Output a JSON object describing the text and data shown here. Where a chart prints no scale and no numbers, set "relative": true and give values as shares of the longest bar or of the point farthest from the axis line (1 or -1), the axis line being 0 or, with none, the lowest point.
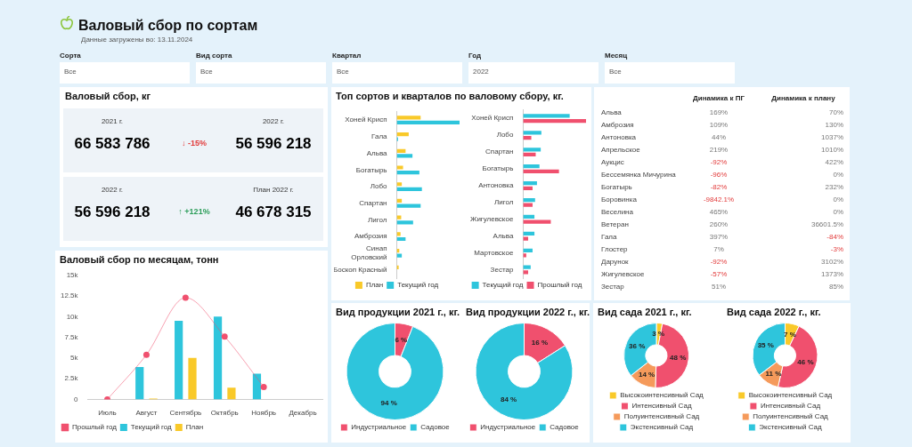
{
  "chart_data": [
    {
      "type": "other",
      "title": "Валовый сбор по сортам",
      "subtitle": "Данные загружены во: 13.11.2024",
      "annotations": [
        "Сорта",
        "Все",
        "Вид сорта",
        "Все",
        "Квартал",
        "Все",
        "Год",
        "2022",
        "Месяц",
        "Все"
      ]
    },
    {
      "type": "other",
      "title": "Валовый сбор, кг",
      "annotations": [
        "2021 г.",
        "66 583 786",
        "↓ -15%",
        "2022 г.",
        "56 596 218",
        "2022 г.",
        "56 596 218",
        "↑ +121%",
        "План 2022 г.",
        "46 678 315"
      ]
    },
    {
      "type": "bar",
      "title": "Топ сортов и кварталов по валовому сбору, кг.",
      "orientation": "horizontal",
      "relative": true,
      "legend": "bottom",
      "categories": [
        "Хоней Крисп",
        "Гала",
        "Альва",
        "Богатырь",
        "Лобо",
        "Спартан",
        "Лигол",
        "Амброзия",
        "Синап Орловский",
        "Боскоп Красный"
      ],
      "series": [
        {
          "name": "План",
          "color": "#f9c929",
          "values": [
            0.38,
            0.19,
            0.14,
            0.1,
            0.08,
            0.08,
            0.07,
            0.06,
            0.04,
            0.03
          ]
        },
        {
          "name": "Текущий год",
          "color": "#2ec5dc",
          "values": [
            1,
            0.02,
            0.25,
            0.36,
            0.4,
            0.38,
            0.26,
            0.14,
            0.08,
            null
          ]
        }
      ]
    },
    {
      "type": "bar",
      "orientation": "horizontal",
      "relative": true,
      "legend": "bottom",
      "categories": [
        "Хоней Крисп",
        "Лобо",
        "Спартан",
        "Богатырь",
        "Антоновка",
        "Лигол",
        "Жигулевское",
        "Альва",
        "Мартовское",
        "Зестар"
      ],
      "series": [
        {
          "name": "Текущий год",
          "color": "#2ec5dc",
          "values": [
            0.74,
            0.29,
            0.28,
            0.26,
            0.22,
            0.19,
            0.18,
            0.18,
            0.15,
            0.12
          ]
        },
        {
          "name": "Прошлый год",
          "color": "#f0506e",
          "values": [
            1,
            0.13,
            0.2,
            0.57,
            0.15,
            0.15,
            0.44,
            0.08,
            0.05,
            0.08
          ]
        }
      ]
    },
    {
      "type": "other",
      "categories": [
        "Альва",
        "Амброзия",
        "Антоновка",
        "Апрельское",
        "Аукцис",
        "Бессемянка Мичурина",
        "Богатырь",
        "Боровинка",
        "Веселина",
        "Ветеран",
        "Гала",
        "Глостер",
        "Дарунок",
        "Жигулевское",
        "Зестар"
      ],
      "series": [
        {
          "name": "Динамика к ПГ",
          "values": [
            169,
            109,
            44,
            219,
            -92,
            -96,
            -82,
            -9842.1,
            465,
            260,
            397,
            7,
            -92,
            -57,
            51
          ],
          "value_labels": [
            "169%",
            "109%",
            "44%",
            "219%",
            "-92%",
            "-96%",
            "-82%",
            "-9842.1%",
            "465%",
            "260%",
            "397%",
            "7%",
            "-92%",
            "-57%",
            "51%"
          ]
        },
        {
          "name": "Динамика к плану",
          "values": [
            70,
            130,
            1037,
            1010,
            422,
            0,
            232,
            0,
            0,
            36601.5,
            -84,
            -3,
            3102,
            1373,
            85
          ],
          "value_labels": [
            "70%",
            "130%",
            "1037%",
            "1010%",
            "422%",
            "0%",
            "232%",
            "0%",
            "0%",
            "36601.5%",
            "-84%",
            "-3%",
            "3102%",
            "1373%",
            "85%"
          ]
        }
      ]
    },
    {
      "type": "bar",
      "title": "Валовый сбор по месяцам, тонн",
      "categories": [
        "Июль",
        "Август",
        "Сентябрь",
        "Октябрь",
        "Ноябрь",
        "Декабрь"
      ],
      "ylim": [
        0,
        15000
      ],
      "yticks": [
        0,
        {
          "value": 2500,
          "label": "2.5k"
        },
        {
          "value": 5000,
          "label": "5k"
        },
        {
          "value": 7500,
          "label": "7.5k"
        },
        {
          "value": 10000,
          "label": "10k"
        },
        {
          "value": 12500,
          "label": "12.5k"
        },
        {
          "value": 15000,
          "label": "15k"
        }
      ],
      "grid": false,
      "legend": "bottom left",
      "marker": "circle",
      "series": [
        {
          "name": "Прошлый год",
          "type": "line",
          "color": "#f0506e",
          "values": [
            0,
            5400,
            12300,
            7600,
            1500,
            null
          ]
        },
        {
          "name": "Текущий год",
          "color": "#2ec5dc",
          "values": [
            null,
            3900,
            9500,
            10000,
            3100,
            null
          ]
        },
        {
          "name": "План",
          "color": "#f9c929",
          "values": [
            null,
            100,
            5000,
            1400,
            null,
            null
          ]
        }
      ]
    },
    {
      "type": "donut",
      "title": "Вид продукции 2021 г., кг.",
      "legend": "bottom",
      "categories": [
        "Индустриальное",
        "Садовое"
      ],
      "values": [
        6,
        94
      ],
      "colors": [
        "#f0506e",
        "#2ec5dc"
      ],
      "value_labels": [
        "6 %",
        "94 %"
      ]
    },
    {
      "type": "donut",
      "title": "Вид продукции 2022 г., кг.",
      "legend": "bottom",
      "categories": [
        "Индустриальное",
        "Садовое"
      ],
      "values": [
        16,
        84
      ],
      "colors": [
        "#f0506e",
        "#2ec5dc"
      ],
      "value_labels": [
        "16 %",
        "84 %"
      ]
    },
    {
      "type": "donut",
      "title": "Вид сада 2021 г., кг.",
      "legend": "bottom",
      "categories": [
        "Высокоинтенсивный Сад",
        "Интенсивный Сад",
        "Полуинтенсивный Сад",
        "Экстенсивный Сад"
      ],
      "values": [
        3,
        48,
        14,
        36
      ],
      "colors": [
        "#f9c929",
        "#f0506e",
        "#f59a5b",
        "#2ec5dc"
      ],
      "value_labels": [
        "3 %",
        "48 %",
        "14 %",
        "36 %"
      ]
    },
    {
      "type": "donut",
      "title": "Вид сада 2022 г., кг.",
      "legend": "bottom",
      "categories": [
        "Высокоинтенсивный Сад",
        "Интенсивный Сад",
        "Полуинтенсивный Сад",
        "Экстенсивный Сад"
      ],
      "values": [
        7,
        46,
        11,
        35
      ],
      "colors": [
        "#f9c929",
        "#f0506e",
        "#f59a5b",
        "#2ec5dc"
      ],
      "value_labels": [
        "7 %",
        "46 %",
        "11 %",
        "35 %"
      ]
    }
  ]
}
